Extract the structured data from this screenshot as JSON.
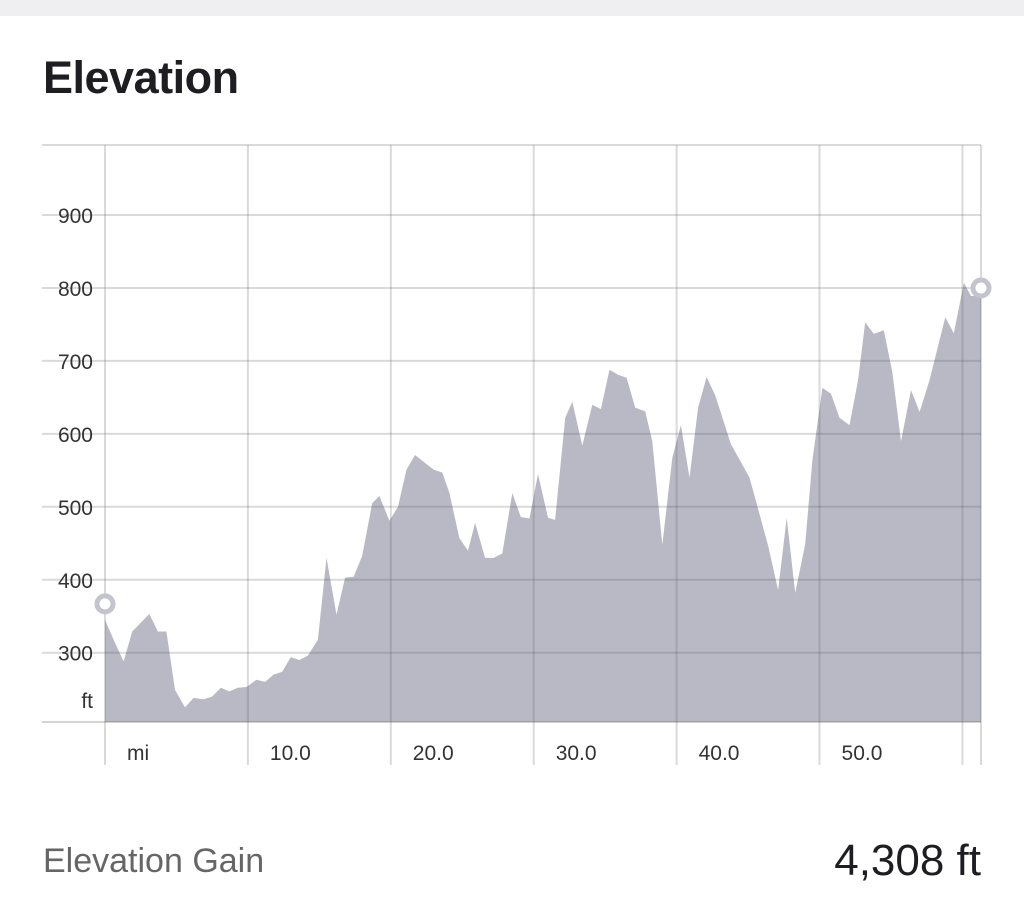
{
  "title": "Elevation",
  "summary": {
    "label": "Elevation Gain",
    "value": "4,308 ft"
  },
  "colors": {
    "fill": "#b9b9c6",
    "grid": "#d6d6da",
    "marker": "#c4c4cf",
    "text": "#333333"
  },
  "chart_data": {
    "type": "area",
    "title": "Elevation",
    "xlabel": "mi",
    "ylabel": "ft",
    "xlim": [
      0,
      61.3
    ],
    "ylim": [
      205,
      996
    ],
    "grid": true,
    "x_ticks": [
      0,
      10,
      20,
      30,
      40,
      50,
      60,
      61.3
    ],
    "x_tick_labels": [
      "mi",
      "10.0",
      "20.0",
      "30.0",
      "40.0",
      "50.0",
      "",
      ""
    ],
    "y_ticks": [
      300,
      400,
      500,
      600,
      700,
      800,
      900
    ],
    "y_tick_labels": [
      "300",
      "400",
      "500",
      "600",
      "700",
      "800",
      "900"
    ],
    "x": [
      0.0,
      0.6,
      1.3,
      1.9,
      3.1,
      3.7,
      4.3,
      4.9,
      5.6,
      6.2,
      6.9,
      7.5,
      8.1,
      8.7,
      9.3,
      9.9,
      10.6,
      11.2,
      11.8,
      12.4,
      13.0,
      13.6,
      14.2,
      14.9,
      15.5,
      16.2,
      16.8,
      17.4,
      18.0,
      18.7,
      19.2,
      19.9,
      20.5,
      21.1,
      21.7,
      22.4,
      23.0,
      23.6,
      24.1,
      24.8,
      25.4,
      25.9,
      26.6,
      27.2,
      27.8,
      28.5,
      29.1,
      29.7,
      30.3,
      31.0,
      31.5,
      32.2,
      32.7,
      33.4,
      34.1,
      34.7,
      35.3,
      35.9,
      36.5,
      37.1,
      37.8,
      38.3,
      39.0,
      39.7,
      40.3,
      40.9,
      41.5,
      42.1,
      42.7,
      43.8,
      45.1,
      46.4,
      47.1,
      47.7,
      48.3,
      49.0,
      49.5,
      50.2,
      50.8,
      51.4,
      52.1,
      52.7,
      53.2,
      53.8,
      54.5,
      55.1,
      55.7,
      56.4,
      57.0,
      57.7,
      58.8,
      59.4,
      60.1,
      60.6,
      61.3
    ],
    "y": [
      345,
      318,
      288,
      329,
      353,
      329,
      329,
      249,
      225,
      238,
      236,
      240,
      252,
      247,
      252,
      253,
      263,
      260,
      270,
      274,
      294,
      290,
      296,
      318,
      430,
      352,
      403,
      404,
      433,
      505,
      515,
      481,
      500,
      551,
      571,
      560,
      551,
      547,
      519,
      457,
      440,
      478,
      430,
      430,
      436,
      519,
      486,
      484,
      545,
      485,
      482,
      622,
      644,
      584,
      640,
      634,
      688,
      681,
      677,
      636,
      631,
      590,
      448,
      567,
      612,
      540,
      636,
      678,
      653,
      586,
      540,
      447,
      386,
      485,
      382,
      449,
      564,
      663,
      655,
      622,
      612,
      674,
      753,
      737,
      742,
      684,
      590,
      660,
      630,
      674,
      760,
      738,
      807,
      789,
      789
    ],
    "markers": [
      "start",
      "end"
    ]
  }
}
